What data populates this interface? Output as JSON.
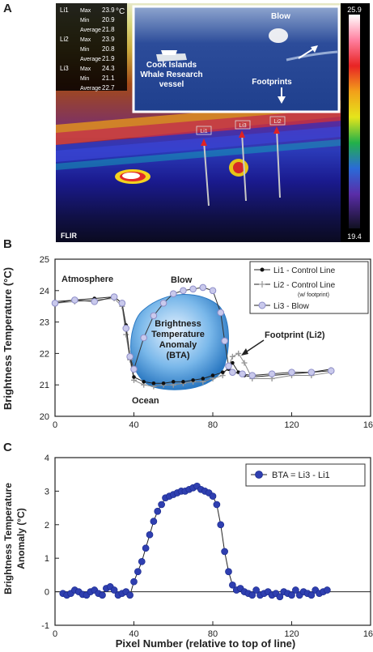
{
  "panels": {
    "a": "A",
    "b": "B",
    "c": "C"
  },
  "thermal": {
    "colorbar_max": "25.9",
    "colorbar_min": "19.4",
    "unit": "°C",
    "brand": "FLIR",
    "inset_labels": {
      "blow": "Blow",
      "vessel_line1": "Cook Islands",
      "vessel_line2": "Whale Research",
      "vessel_line3": "vessel",
      "footprints": "Footprints"
    },
    "line_tags": [
      "Li1",
      "Li3",
      "Li2"
    ],
    "stats": [
      {
        "line": "Li1",
        "rows": [
          {
            "k": "Max",
            "v": "23.9"
          },
          {
            "k": "Min",
            "v": "20.9"
          },
          {
            "k": "Average",
            "v": "21.8"
          }
        ]
      },
      {
        "line": "Li2",
        "rows": [
          {
            "k": "Max",
            "v": "23.9"
          },
          {
            "k": "Min",
            "v": "20.8"
          },
          {
            "k": "Average",
            "v": "21.9"
          }
        ]
      },
      {
        "line": "Li3",
        "rows": [
          {
            "k": "Max",
            "v": "24.3"
          },
          {
            "k": "Min",
            "v": "21.1"
          },
          {
            "k": "Average",
            "v": "22.7"
          }
        ]
      }
    ]
  },
  "chart_data": [
    {
      "type": "line",
      "ylabel": "Brightness Temperature (°C)",
      "xlim": [
        0,
        160
      ],
      "ylim": [
        20,
        25
      ],
      "xticks": [
        "0",
        "40",
        "80",
        "120",
        "160"
      ],
      "yticks": [
        "20",
        "21",
        "22",
        "23",
        "24",
        "25"
      ],
      "annotations": {
        "atmosphere": "Atmosphere",
        "blow": "Blow",
        "ocean": "Ocean",
        "footprint": "Footprint (Li2)",
        "bta1": "Brightness",
        "bta2": "Temperature",
        "bta3": "Anomaly",
        "bta4": "(BTA)"
      },
      "legend": {
        "position": "top-right",
        "entries": [
          "Li1 - Control Line",
          "Li2 - Control Line",
          "Li3 - Blow"
        ],
        "sub": "(w/ footprint)"
      },
      "series": [
        {
          "name": "Li1 - Control Line",
          "x": [
            0,
            10,
            20,
            30,
            34,
            36,
            38,
            40,
            45,
            50,
            55,
            60,
            65,
            70,
            75,
            80,
            85,
            88,
            90,
            93,
            96,
            100,
            110,
            120,
            130,
            140
          ],
          "y": [
            23.65,
            23.7,
            23.75,
            23.8,
            23.6,
            22.9,
            21.9,
            21.25,
            21.1,
            21.05,
            21.05,
            21.1,
            21.1,
            21.15,
            21.2,
            21.3,
            21.4,
            21.5,
            21.7,
            21.4,
            21.3,
            21.25,
            21.3,
            21.35,
            21.4,
            21.5
          ]
        },
        {
          "name": "Li2 - Control Line",
          "x": [
            0,
            10,
            20,
            30,
            34,
            36,
            38,
            40,
            45,
            50,
            55,
            60,
            65,
            70,
            75,
            80,
            85,
            88,
            90,
            93,
            96,
            100,
            110,
            120,
            130,
            140
          ],
          "y": [
            23.6,
            23.65,
            23.7,
            23.75,
            23.5,
            22.6,
            21.8,
            21.15,
            21.0,
            20.95,
            21.0,
            21.0,
            21.05,
            21.1,
            21.1,
            21.2,
            21.3,
            21.6,
            21.9,
            22.0,
            21.7,
            21.2,
            21.2,
            21.3,
            21.3,
            21.4
          ]
        },
        {
          "name": "Li3 - Blow",
          "x": [
            0,
            10,
            20,
            30,
            34,
            36,
            38,
            40,
            45,
            50,
            55,
            60,
            65,
            70,
            75,
            80,
            84,
            86,
            88,
            90,
            95,
            100,
            110,
            120,
            130,
            140
          ],
          "y": [
            23.6,
            23.7,
            23.65,
            23.8,
            23.6,
            22.8,
            21.9,
            21.5,
            22.5,
            23.2,
            23.6,
            23.9,
            24.0,
            24.05,
            24.1,
            24.0,
            23.3,
            22.4,
            21.6,
            21.4,
            21.35,
            21.3,
            21.35,
            21.4,
            21.4,
            21.45
          ]
        }
      ]
    },
    {
      "type": "scatter",
      "xlabel": "Pixel Number (relative to top of line)",
      "ylabel": "Brightness Temperature Anomaly (°C)",
      "xlim": [
        0,
        160
      ],
      "ylim": [
        -1,
        4
      ],
      "xticks": [
        "0",
        "40",
        "80",
        "120",
        "160"
      ],
      "yticks": [
        "-1",
        "0",
        "1",
        "2",
        "3",
        "4"
      ],
      "legend": {
        "position": "top-right",
        "entries": [
          "BTA = Li3 - Li1"
        ]
      },
      "series": [
        {
          "name": "BTA = Li3 - Li1",
          "x": [
            4,
            6,
            8,
            10,
            12,
            14,
            16,
            18,
            20,
            22,
            24,
            26,
            28,
            30,
            32,
            34,
            36,
            38,
            40,
            42,
            44,
            46,
            48,
            50,
            52,
            54,
            56,
            58,
            60,
            62,
            64,
            66,
            68,
            70,
            72,
            74,
            76,
            78,
            80,
            82,
            84,
            86,
            88,
            90,
            92,
            94,
            96,
            98,
            100,
            102,
            104,
            106,
            108,
            110,
            112,
            114,
            116,
            118,
            120,
            122,
            124,
            126,
            128,
            130,
            132,
            134,
            136,
            138
          ],
          "y": [
            -0.05,
            -0.1,
            -0.05,
            0.05,
            0.0,
            -0.08,
            -0.1,
            0.0,
            0.05,
            -0.05,
            -0.1,
            0.1,
            0.15,
            0.05,
            -0.1,
            -0.05,
            0.0,
            -0.1,
            0.3,
            0.6,
            0.9,
            1.3,
            1.7,
            2.1,
            2.4,
            2.6,
            2.8,
            2.85,
            2.9,
            2.95,
            3.0,
            3.0,
            3.05,
            3.1,
            3.15,
            3.05,
            3.0,
            2.95,
            2.85,
            2.6,
            2.0,
            1.2,
            0.6,
            0.2,
            0.05,
            0.1,
            0.0,
            -0.05,
            -0.1,
            0.05,
            -0.1,
            -0.05,
            0.0,
            -0.1,
            -0.05,
            -0.15,
            0.0,
            -0.05,
            -0.1,
            0.05,
            -0.1,
            0.0,
            -0.05,
            -0.1,
            0.05,
            -0.05,
            0.0,
            0.05
          ]
        }
      ]
    }
  ]
}
